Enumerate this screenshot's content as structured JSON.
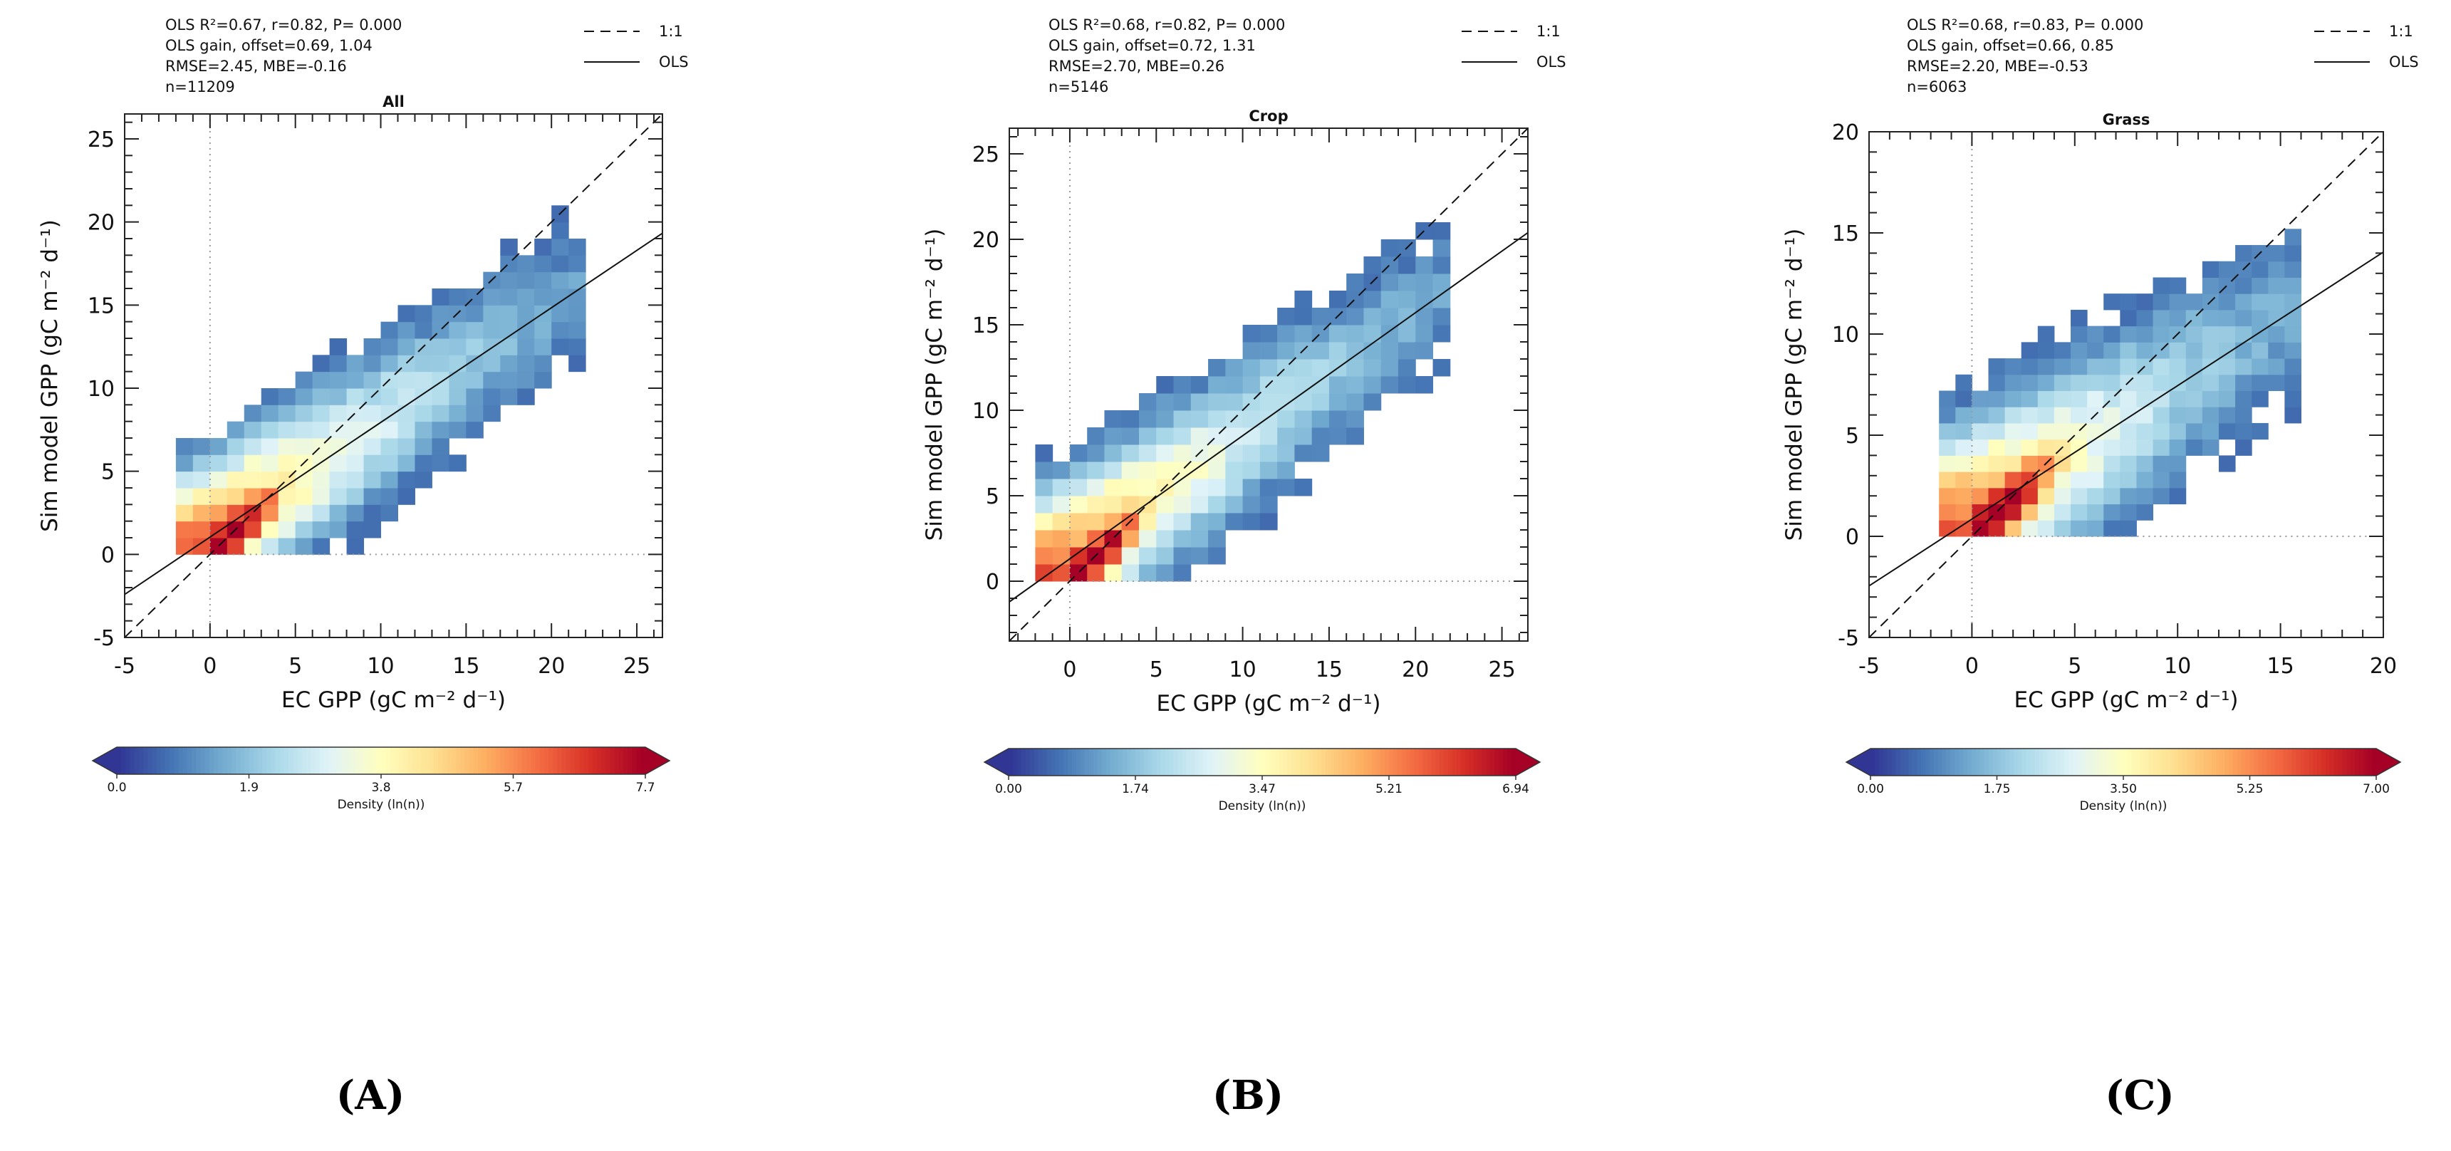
{
  "panel_labels": [
    "(A)",
    "(B)",
    "(C)"
  ],
  "colormap": [
    "#313695",
    "#4575b4",
    "#74add1",
    "#abd9e9",
    "#e0f3f8",
    "#ffffbf",
    "#fee090",
    "#fdae61",
    "#f46d43",
    "#d73027",
    "#a50026"
  ],
  "chart_data": [
    {
      "type": "heatmap",
      "title": "All",
      "xlabel": "EC GPP (gC m⁻² d⁻¹)",
      "ylabel": "Sim model GPP (gC m⁻² d⁻¹)",
      "xlim": [
        -5,
        26.5
      ],
      "ylim": [
        -5,
        26.5
      ],
      "xticks": [
        -5,
        0,
        5,
        10,
        15,
        20,
        25
      ],
      "yticks": [
        -5,
        0,
        5,
        10,
        15,
        20,
        25
      ],
      "stats": [
        "OLS R²=0.67, r=0.82, P= 0.000",
        "OLS gain, offset=0.69, 1.04",
        "RMSE=2.45, MBE=-0.16",
        "n=11209"
      ],
      "legend": [
        "1:1",
        "OLS"
      ],
      "ols": {
        "gain": 0.69,
        "offset": 1.04
      },
      "bin_size": 1,
      "max_density": 7.7,
      "colorbar_ticks": [
        "0.0",
        "1.9",
        "3.8",
        "5.7",
        "7.7"
      ],
      "colorbar_label": "Density (ln(n))"
    },
    {
      "type": "heatmap",
      "title": "Crop",
      "xlabel": "EC GPP (gC m⁻² d⁻¹)",
      "ylabel": "Sim model GPP (gC m⁻² d⁻¹)",
      "xlim": [
        -3.5,
        26.5
      ],
      "ylim": [
        -3.5,
        26.5
      ],
      "xticks": [
        0,
        5,
        10,
        15,
        20,
        25
      ],
      "yticks": [
        0,
        5,
        10,
        15,
        20,
        25
      ],
      "stats": [
        "OLS R²=0.68, r=0.82, P= 0.000",
        "OLS gain, offset=0.72, 1.31",
        "RMSE=2.70, MBE=0.26",
        "n=5146"
      ],
      "legend": [
        "1:1",
        "OLS"
      ],
      "ols": {
        "gain": 0.72,
        "offset": 1.31
      },
      "bin_size": 1,
      "max_density": 6.94,
      "colorbar_ticks": [
        "0.00",
        "1.74",
        "3.47",
        "5.21",
        "6.94"
      ],
      "colorbar_label": "Density (ln(n))"
    },
    {
      "type": "heatmap",
      "title": "Grass",
      "xlabel": "EC GPP (gC m⁻² d⁻¹)",
      "ylabel": "Sim model GPP (gC m⁻² d⁻¹)",
      "xlim": [
        -5,
        20
      ],
      "ylim": [
        -5,
        20
      ],
      "xticks": [
        -5,
        0,
        5,
        10,
        15,
        20
      ],
      "yticks": [
        -5,
        0,
        5,
        10,
        15,
        20
      ],
      "stats": [
        "OLS R²=0.68, r=0.83, P= 0.000",
        "OLS gain, offset=0.66, 0.85",
        "RMSE=2.20, MBE=-0.53",
        "n=6063"
      ],
      "legend": [
        "1:1",
        "OLS"
      ],
      "ols": {
        "gain": 0.66,
        "offset": 0.85
      },
      "bin_size": 0.8,
      "max_density": 7.0,
      "colorbar_ticks": [
        "0.00",
        "1.75",
        "3.50",
        "5.25",
        "7.00"
      ],
      "colorbar_label": "Density (ln(n))"
    }
  ]
}
